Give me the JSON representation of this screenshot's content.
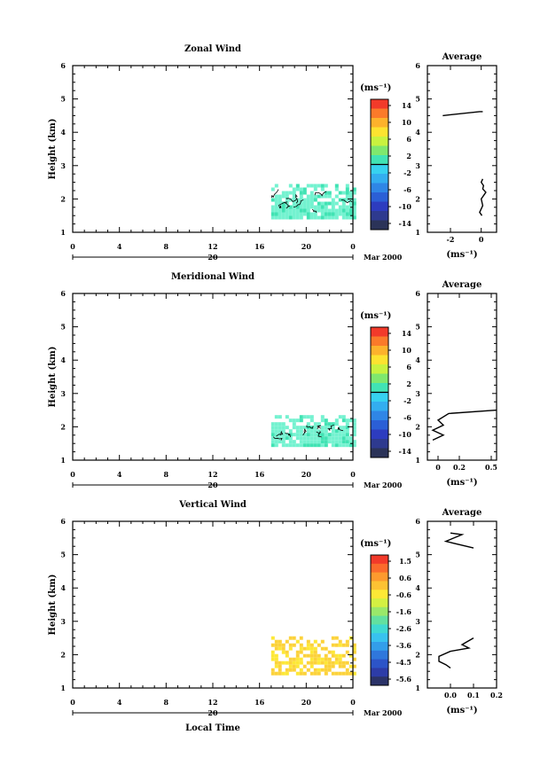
{
  "chart_data": [
    {
      "type": "heatmap",
      "title": "Zonal Wind",
      "ylabel": "Height (km)",
      "ylim": [
        1,
        6
      ],
      "xlim": [
        0,
        24
      ],
      "x_ticks": [
        "0",
        "4",
        "8",
        "12",
        "16",
        "20",
        "0"
      ],
      "y_ticks": [
        "1",
        "2",
        "3",
        "4",
        "5",
        "6"
      ],
      "date_bar": {
        "day": "20",
        "month_year": "Mar 2000"
      },
      "colorbar": {
        "unit": "(ms⁻¹)",
        "ticks": [
          "14",
          "10",
          "6",
          "2",
          "-2",
          "-6",
          "-10",
          "-14"
        ]
      },
      "data_region": {
        "x_from": 17,
        "x_to": 24,
        "y_from": 1.45,
        "y_to": 2.45,
        "dominant": "light cyan-green (approx. 0 to -2 ms⁻¹)"
      },
      "average": {
        "title": "Average",
        "xlabel": "(ms⁻¹)",
        "x_ticks": [
          "-2",
          "0"
        ],
        "xlim": [
          -3.5,
          1
        ],
        "profile": [
          [
            -2.5,
            4.5
          ],
          [
            -0.1,
            4.62
          ],
          [
            0.1,
            4.62
          ]
        ],
        "profile_low": [
          [
            0.1,
            2.6
          ],
          [
            0.0,
            2.5
          ],
          [
            0.15,
            2.4
          ],
          [
            0.1,
            2.3
          ],
          [
            0.3,
            2.2
          ],
          [
            0.0,
            2.0
          ],
          [
            0.1,
            1.8
          ],
          [
            -0.1,
            1.6
          ],
          [
            0.05,
            1.5
          ]
        ]
      }
    },
    {
      "type": "heatmap",
      "title": "Meridional Wind",
      "ylabel": "Height (km)",
      "ylim": [
        1,
        6
      ],
      "xlim": [
        0,
        24
      ],
      "x_ticks": [
        "0",
        "4",
        "8",
        "12",
        "16",
        "20",
        "0"
      ],
      "y_ticks": [
        "1",
        "2",
        "3",
        "4",
        "5",
        "6"
      ],
      "date_bar": {
        "day": "20",
        "month_year": "Mar 2000"
      },
      "colorbar": {
        "unit": "(ms⁻¹)",
        "ticks": [
          "14",
          "10",
          "6",
          "2",
          "-2",
          "-6",
          "-10",
          "-14"
        ]
      },
      "data_region": {
        "x_from": 17,
        "x_to": 24,
        "y_from": 1.45,
        "y_to": 2.35,
        "dominant": "light cyan-green (approx. 0 to 2 ms⁻¹)"
      },
      "average": {
        "title": "Average",
        "xlabel": "(ms⁻¹)",
        "x_ticks": [
          "0",
          "0.2",
          "0.5"
        ],
        "xlim": [
          -0.1,
          0.55
        ],
        "profile": [
          [
            0.55,
            2.5
          ],
          [
            0.1,
            2.4
          ],
          [
            0.0,
            2.2
          ],
          [
            0.05,
            2.05
          ],
          [
            -0.05,
            1.9
          ],
          [
            0.05,
            1.75
          ],
          [
            -0.05,
            1.6
          ]
        ]
      }
    },
    {
      "type": "heatmap",
      "title": "Vertical Wind",
      "ylabel": "Height (km)",
      "xlabel": "Local Time",
      "ylim": [
        1,
        6
      ],
      "xlim": [
        0,
        24
      ],
      "x_ticks": [
        "0",
        "4",
        "8",
        "12",
        "16",
        "20",
        "0"
      ],
      "y_ticks": [
        "1",
        "2",
        "3",
        "4",
        "5",
        "6"
      ],
      "date_bar": {
        "day": "20",
        "month_year": "Mar 2000"
      },
      "colorbar": {
        "unit": "(ms⁻¹)",
        "ticks": [
          "1.5",
          "0.6",
          "-0.6",
          "-1.6",
          "-2.6",
          "-3.6",
          "-4.5",
          "-5.6"
        ]
      },
      "data_region": {
        "x_from": 17,
        "x_to": 24,
        "y_from": 1.4,
        "y_to": 2.55,
        "dominant": "yellow (approx. 0.6 to -0.6 ms⁻¹)"
      },
      "average": {
        "title": "Average",
        "xlabel": "(ms⁻¹)",
        "x_ticks": [
          "0.0",
          "0.1",
          "0.2"
        ],
        "xlim": [
          -0.1,
          0.2
        ],
        "profile": [
          [
            0.0,
            5.65
          ],
          [
            0.05,
            5.6
          ],
          [
            -0.02,
            5.4
          ],
          [
            0.1,
            5.2
          ]
        ],
        "profile_low": [
          [
            0.1,
            2.5
          ],
          [
            0.05,
            2.3
          ],
          [
            0.08,
            2.2
          ],
          [
            0.0,
            2.1
          ],
          [
            -0.05,
            1.95
          ],
          [
            -0.05,
            1.8
          ],
          [
            -0.02,
            1.7
          ],
          [
            0.0,
            1.6
          ]
        ]
      }
    }
  ],
  "colors": {
    "zonal_merid": [
      "#f23a2a",
      "#fb7a2a",
      "#fdb22c",
      "#fde330",
      "#c9f23f",
      "#7fe86e",
      "#41e3b4",
      "#37d2f0",
      "#33aef0",
      "#2f86e6",
      "#2b5fd6",
      "#2d3cbf",
      "#2e3a8f",
      "#2b3358"
    ],
    "vertical": [
      "#f23a2a",
      "#fb6a2c",
      "#fd9a2e",
      "#fdc233",
      "#fde836",
      "#d4f042",
      "#9ae86a",
      "#62e0a0",
      "#3fd9d2",
      "#38c2ef",
      "#339eea",
      "#2f77dc",
      "#2c54c8",
      "#2d3ca8",
      "#2b3368"
    ],
    "field_zm": "#74f2d0",
    "field_v": "#fcd23a"
  }
}
